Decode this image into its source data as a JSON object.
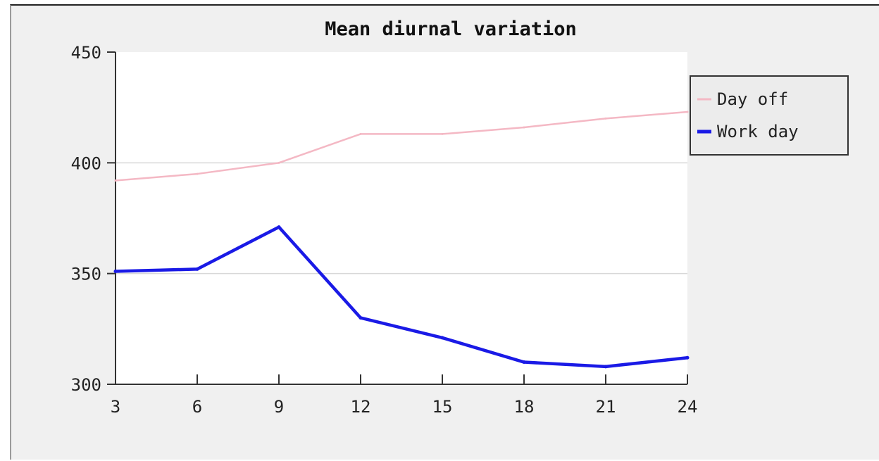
{
  "chart_data": {
    "type": "line",
    "title": "Mean diurnal variation",
    "xlabel": "",
    "ylabel": "",
    "x": [
      3,
      6,
      9,
      12,
      15,
      18,
      21,
      24
    ],
    "xlim": [
      3,
      24
    ],
    "ylim": [
      300,
      450
    ],
    "x_ticks": [
      "3",
      "6",
      "9",
      "12",
      "15",
      "18",
      "21",
      "24"
    ],
    "y_ticks": [
      "300",
      "350",
      "400",
      "450"
    ],
    "grid": "horizontal",
    "legend_position": "right",
    "series": [
      {
        "name": "Day off",
        "color": "#f4b8c4",
        "values": [
          392,
          395,
          400,
          413,
          413,
          416,
          420,
          423
        ]
      },
      {
        "name": "Work day",
        "color": "#1a1ae6",
        "values": [
          351,
          352,
          371,
          330,
          321,
          310,
          308,
          312
        ]
      }
    ]
  }
}
